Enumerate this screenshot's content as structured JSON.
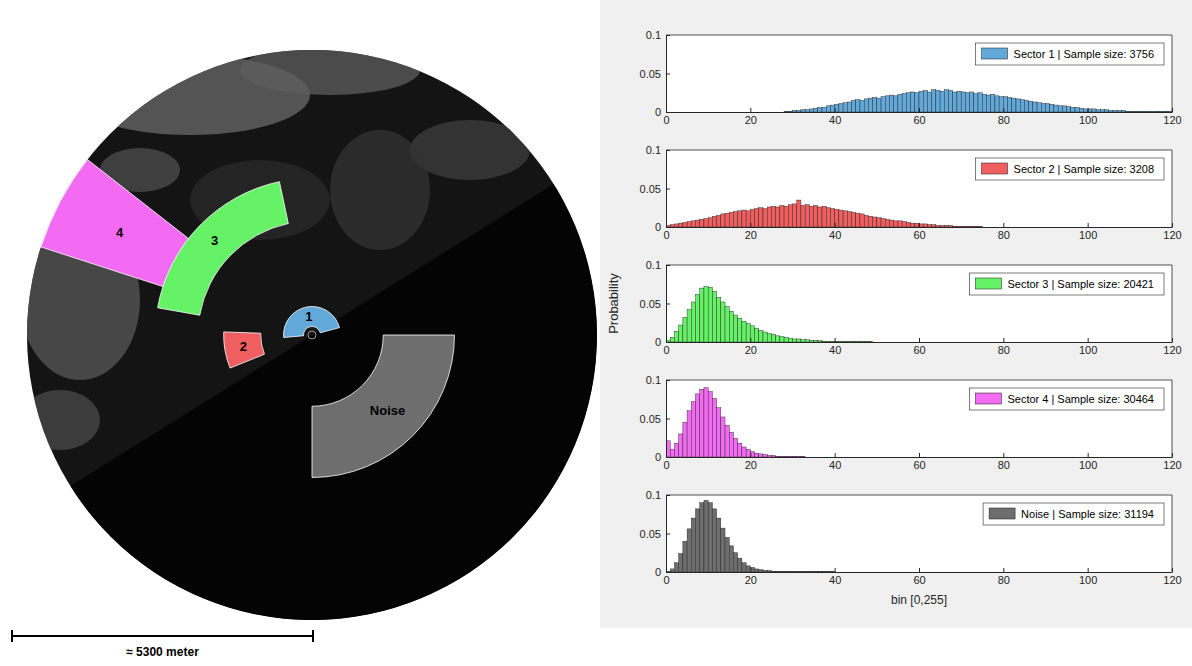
{
  "radar_image": {
    "sectors": [
      {
        "label": "1",
        "color": "#62a8d8"
      },
      {
        "label": "2",
        "color": "#f05f5f"
      },
      {
        "label": "3",
        "color": "#66f266"
      },
      {
        "label": "4",
        "color": "#f26bf2"
      },
      {
        "label": "Noise",
        "color": "#6e6e6e"
      }
    ],
    "scale_bar": "≈ 5300 meter"
  },
  "chart_data": [
    {
      "type": "histogram",
      "legend": "upper right",
      "xlim": [
        0,
        120
      ],
      "ylim": [
        0,
        0.1
      ],
      "xticks": [
        0,
        20,
        40,
        60,
        80,
        100,
        120
      ],
      "yticks": [
        0,
        0.05,
        0.1
      ],
      "bins": [
        28,
        29,
        30,
        31,
        32,
        33,
        34,
        35,
        36,
        37,
        38,
        39,
        40,
        41,
        42,
        43,
        44,
        45,
        46,
        47,
        48,
        49,
        50,
        51,
        52,
        53,
        54,
        55,
        56,
        57,
        58,
        59,
        60,
        61,
        62,
        63,
        64,
        65,
        66,
        67,
        68,
        69,
        70,
        71,
        72,
        73,
        74,
        75,
        76,
        77,
        78,
        79,
        80,
        81,
        82,
        83,
        84,
        85,
        86,
        87,
        88,
        89,
        90,
        91,
        92,
        93,
        94,
        95,
        96,
        97,
        98,
        99,
        100,
        101,
        102,
        103,
        104,
        105,
        106,
        107,
        108,
        109,
        110,
        111,
        112,
        113,
        114,
        115,
        116,
        117,
        118,
        119,
        120
      ],
      "series": [
        {
          "name": "Sector 1 | Sample size: 3756",
          "color": "#62a8d8",
          "values": [
            0.001,
            0.001,
            0.002,
            0.002,
            0.003,
            0.003,
            0.004,
            0.005,
            0.006,
            0.006,
            0.008,
            0.009,
            0.01,
            0.011,
            0.012,
            0.013,
            0.015,
            0.016,
            0.015,
            0.017,
            0.018,
            0.019,
            0.018,
            0.02,
            0.021,
            0.022,
            0.021,
            0.023,
            0.024,
            0.025,
            0.026,
            0.025,
            0.027,
            0.028,
            0.026,
            0.029,
            0.028,
            0.027,
            0.029,
            0.028,
            0.026,
            0.027,
            0.026,
            0.025,
            0.026,
            0.024,
            0.025,
            0.023,
            0.022,
            0.023,
            0.021,
            0.02,
            0.02,
            0.019,
            0.018,
            0.017,
            0.016,
            0.015,
            0.014,
            0.013,
            0.012,
            0.011,
            0.011,
            0.01,
            0.009,
            0.008,
            0.008,
            0.007,
            0.006,
            0.006,
            0.005,
            0.004,
            0.004,
            0.004,
            0.003,
            0.003,
            0.003,
            0.002,
            0.002,
            0.002,
            0.002,
            0.001,
            0.001,
            0.001,
            0.001,
            0.001,
            0.001,
            0.001,
            0.001,
            0.001,
            0.001,
            0.001
          ]
        }
      ]
    },
    {
      "type": "histogram",
      "legend": "upper right",
      "xlim": [
        0,
        120
      ],
      "ylim": [
        0,
        0.1
      ],
      "xticks": [
        0,
        20,
        40,
        60,
        80,
        100,
        120
      ],
      "yticks": [
        0,
        0.05,
        0.1
      ],
      "bins": [
        0,
        1,
        2,
        3,
        4,
        5,
        6,
        7,
        8,
        9,
        10,
        11,
        12,
        13,
        14,
        15,
        16,
        17,
        18,
        19,
        20,
        21,
        22,
        23,
        24,
        25,
        26,
        27,
        28,
        29,
        30,
        31,
        32,
        33,
        34,
        35,
        36,
        37,
        38,
        39,
        40,
        41,
        42,
        43,
        44,
        45,
        46,
        47,
        48,
        49,
        50,
        51,
        52,
        53,
        54,
        55,
        56,
        57,
        58,
        59,
        60,
        61,
        62,
        63,
        64,
        65,
        66,
        67,
        68,
        69,
        70,
        71,
        72,
        73,
        74,
        75
      ],
      "series": [
        {
          "name": "Sector 2 | Sample size: 3208",
          "color": "#f05f5f",
          "values": [
            0.002,
            0.003,
            0.004,
            0.005,
            0.006,
            0.007,
            0.008,
            0.009,
            0.01,
            0.011,
            0.012,
            0.014,
            0.015,
            0.017,
            0.018,
            0.019,
            0.02,
            0.021,
            0.022,
            0.021,
            0.023,
            0.024,
            0.025,
            0.024,
            0.026,
            0.027,
            0.026,
            0.028,
            0.027,
            0.029,
            0.03,
            0.035,
            0.028,
            0.029,
            0.027,
            0.028,
            0.026,
            0.027,
            0.025,
            0.024,
            0.023,
            0.022,
            0.021,
            0.02,
            0.019,
            0.018,
            0.017,
            0.015,
            0.014,
            0.013,
            0.012,
            0.011,
            0.01,
            0.009,
            0.008,
            0.008,
            0.007,
            0.006,
            0.005,
            0.005,
            0.004,
            0.004,
            0.003,
            0.003,
            0.002,
            0.002,
            0.002,
            0.002,
            0.001,
            0.001,
            0.001,
            0.001,
            0.001,
            0.001,
            0.001
          ]
        }
      ]
    },
    {
      "type": "histogram",
      "legend": "upper right",
      "y_label": "Probability",
      "xlim": [
        0,
        120
      ],
      "ylim": [
        0,
        0.1
      ],
      "xticks": [
        0,
        20,
        40,
        60,
        80,
        100,
        120
      ],
      "yticks": [
        0,
        0.05,
        0.1
      ],
      "bins": [
        0,
        1,
        2,
        3,
        4,
        5,
        6,
        7,
        8,
        9,
        10,
        11,
        12,
        13,
        14,
        15,
        16,
        17,
        18,
        19,
        20,
        21,
        22,
        23,
        24,
        25,
        26,
        27,
        28,
        29,
        30,
        31,
        32,
        33,
        34,
        35,
        36,
        37,
        38,
        39,
        40,
        41,
        42,
        43,
        44,
        45,
        46,
        47,
        48,
        49
      ],
      "series": [
        {
          "name": "Sector 3 | Sample size: 20421",
          "color": "#66f266",
          "values": [
            0.002,
            0.006,
            0.014,
            0.022,
            0.032,
            0.042,
            0.052,
            0.062,
            0.07,
            0.072,
            0.071,
            0.066,
            0.058,
            0.052,
            0.046,
            0.04,
            0.035,
            0.031,
            0.027,
            0.024,
            0.021,
            0.018,
            0.015,
            0.013,
            0.011,
            0.01,
            0.008,
            0.007,
            0.006,
            0.005,
            0.004,
            0.004,
            0.003,
            0.003,
            0.002,
            0.002,
            0.002,
            0.001,
            0.001,
            0.001,
            0.001,
            0.001,
            0.001,
            0.001,
            0.001,
            0.001,
            0.001,
            0.001,
            0.001
          ]
        }
      ]
    },
    {
      "type": "histogram",
      "legend": "upper right",
      "xlim": [
        0,
        120
      ],
      "ylim": [
        0,
        0.1
      ],
      "xticks": [
        0,
        20,
        40,
        60,
        80,
        100,
        120
      ],
      "yticks": [
        0,
        0.05,
        0.1
      ],
      "bins": [
        0,
        1,
        2,
        3,
        4,
        5,
        6,
        7,
        8,
        9,
        10,
        11,
        12,
        13,
        14,
        15,
        16,
        17,
        18,
        19,
        20,
        21,
        22,
        23,
        24,
        25,
        26,
        27,
        28,
        29,
        30,
        31,
        32,
        33
      ],
      "series": [
        {
          "name": "Sector 4 | Sample size: 30464",
          "color": "#f26bf2",
          "values": [
            0.021,
            0.01,
            0.018,
            0.03,
            0.045,
            0.06,
            0.072,
            0.082,
            0.088,
            0.09,
            0.085,
            0.076,
            0.064,
            0.052,
            0.041,
            0.032,
            0.024,
            0.018,
            0.013,
            0.01,
            0.007,
            0.005,
            0.004,
            0.003,
            0.002,
            0.002,
            0.001,
            0.001,
            0.001,
            0.001,
            0.001,
            0.001,
            0.001
          ]
        }
      ]
    },
    {
      "type": "histogram",
      "legend": "upper right",
      "x_label": "bin [0,255]",
      "xlim": [
        0,
        120
      ],
      "ylim": [
        0,
        0.1
      ],
      "xticks": [
        0,
        20,
        40,
        60,
        80,
        100,
        120
      ],
      "yticks": [
        0,
        0.05,
        0.1
      ],
      "bins": [
        0,
        1,
        2,
        3,
        4,
        5,
        6,
        7,
        8,
        9,
        10,
        11,
        12,
        13,
        14,
        15,
        16,
        17,
        18,
        19,
        20,
        21,
        22,
        23,
        24,
        25,
        26,
        27,
        28,
        29,
        30,
        31,
        32,
        33,
        34,
        35,
        36,
        37,
        38,
        39,
        40
      ],
      "series": [
        {
          "name": "Noise | Sample size: 31194",
          "color": "#6e6e6e",
          "values": [
            0.001,
            0.004,
            0.012,
            0.024,
            0.04,
            0.056,
            0.07,
            0.082,
            0.09,
            0.093,
            0.09,
            0.082,
            0.07,
            0.057,
            0.045,
            0.034,
            0.025,
            0.018,
            0.012,
            0.008,
            0.006,
            0.004,
            0.003,
            0.002,
            0.002,
            0.001,
            0.001,
            0.001,
            0.001,
            0.001,
            0.001,
            0.001,
            0.001,
            0.001,
            0.001,
            0.001,
            0.001,
            0.001,
            0.001,
            0.001
          ]
        }
      ]
    }
  ]
}
